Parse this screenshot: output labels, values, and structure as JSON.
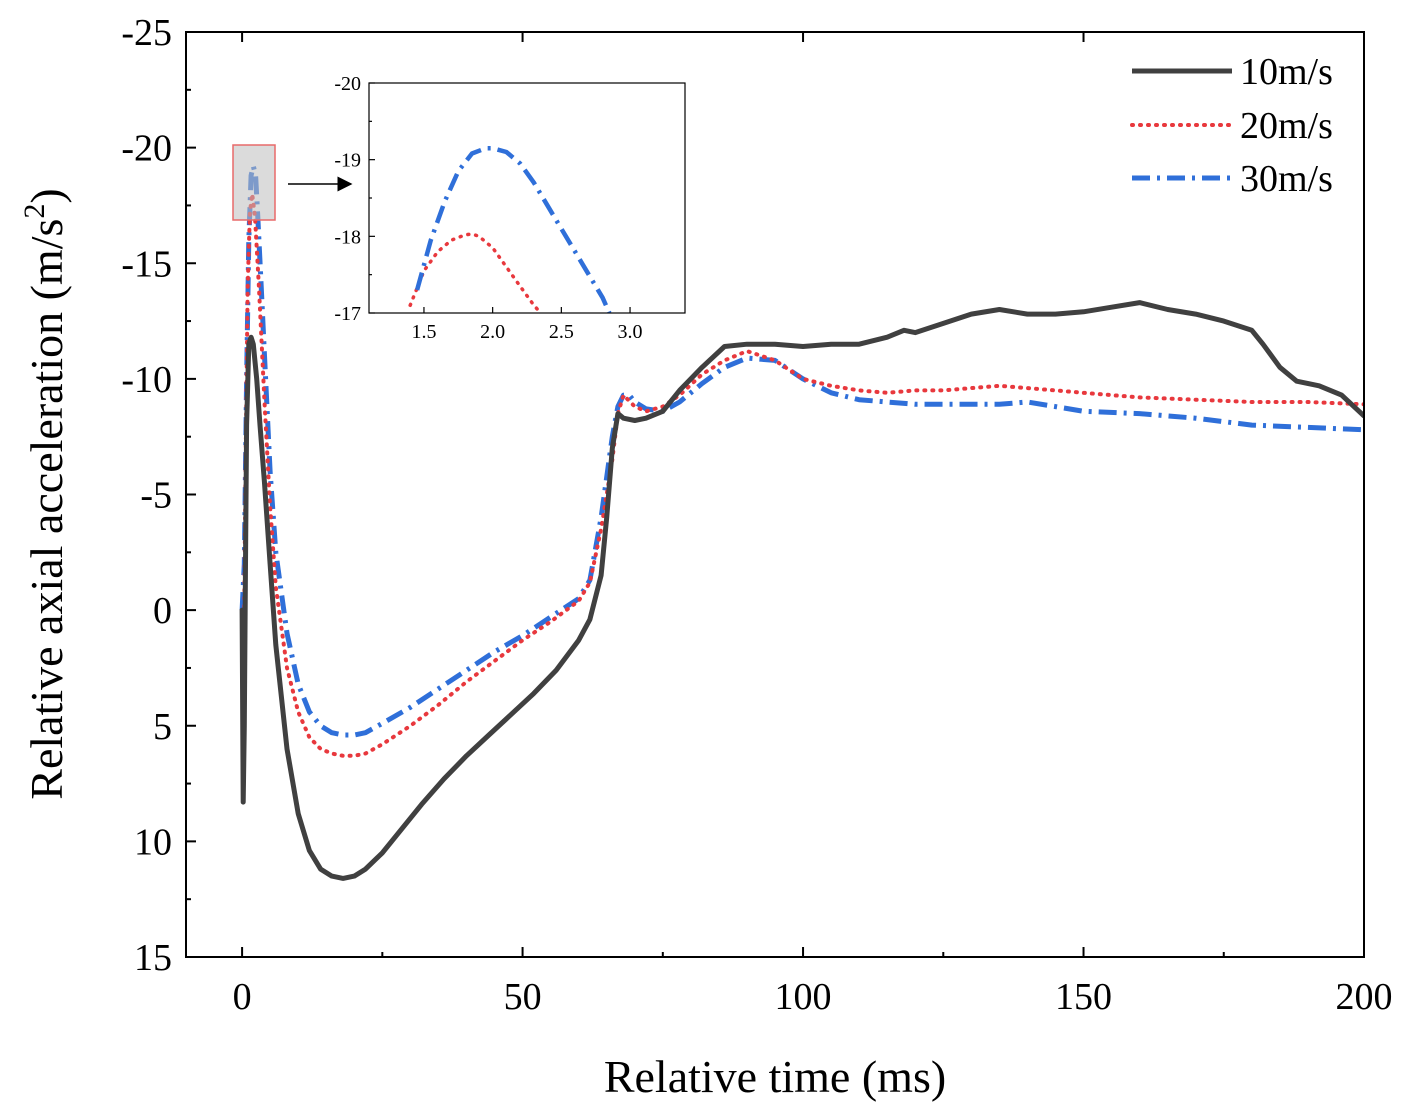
{
  "chart_data": {
    "type": "line",
    "title": "",
    "xlabel": "Relative time (ms)",
    "ylabel": "Relative axial acceleration (m/s",
    "ylabel_sup": "2",
    "ylabel_close": ")",
    "xlim": [
      -10,
      200
    ],
    "ylim": [
      15,
      -25
    ],
    "xticks": [
      0,
      50,
      100,
      150,
      200
    ],
    "xtick_labels": [
      "0",
      "50",
      "100",
      "150",
      "200"
    ],
    "yticks": [
      -25,
      -20,
      -15,
      -10,
      -5,
      0,
      5,
      10,
      15
    ],
    "ytick_labels": [
      "-25",
      "-20",
      "-15",
      "-10",
      "-5",
      "0",
      "5",
      "10",
      "15"
    ],
    "legend_position": "top-right",
    "series": [
      {
        "name": "10m/s",
        "color": "#404040",
        "style": "solid",
        "x": [
          0,
          0.2,
          0.4,
          0.6,
          0.8,
          1.2,
          1.6,
          2.0,
          2.6,
          3.2,
          4,
          5,
          6,
          8,
          10,
          12,
          14,
          16,
          18,
          20,
          22,
          25,
          28,
          32,
          36,
          40,
          44,
          48,
          52,
          56,
          60,
          62,
          64,
          65,
          66,
          67,
          68,
          70,
          72,
          75,
          78,
          82,
          86,
          90,
          95,
          100,
          105,
          110,
          115,
          118,
          120,
          125,
          130,
          135,
          140,
          145,
          150,
          155,
          160,
          165,
          170,
          175,
          180,
          182,
          185,
          188,
          192,
          196,
          200
        ],
        "values": [
          0,
          8.3,
          5,
          -2,
          -8,
          -11.5,
          -11.8,
          -11.5,
          -10,
          -8,
          -5.5,
          -2,
          1.5,
          6,
          8.8,
          10.4,
          11.2,
          11.5,
          11.6,
          11.5,
          11.2,
          10.5,
          9.6,
          8.4,
          7.3,
          6.3,
          5.4,
          4.5,
          3.6,
          2.6,
          1.3,
          0.4,
          -1.5,
          -4,
          -7,
          -8.5,
          -8.3,
          -8.2,
          -8.3,
          -8.6,
          -9.5,
          -10.5,
          -11.4,
          -11.5,
          -11.5,
          -11.4,
          -11.5,
          -11.5,
          -11.8,
          -12.1,
          -12.0,
          -12.4,
          -12.8,
          -13.0,
          -12.8,
          -12.8,
          -12.9,
          -13.1,
          -13.3,
          -13.0,
          -12.8,
          -12.5,
          -12.1,
          -11.5,
          -10.5,
          -9.9,
          -9.7,
          -9.3,
          -8.4
        ]
      },
      {
        "name": "20m/s",
        "color": "#e8383d",
        "style": "dotted",
        "x": [
          0,
          0.3,
          0.6,
          1.0,
          1.4,
          1.8,
          2.3,
          3.0,
          4,
          5,
          6,
          8,
          10,
          12,
          14,
          16,
          18,
          20,
          22,
          25,
          30,
          35,
          40,
          45,
          50,
          55,
          60,
          62,
          64,
          66,
          67,
          68,
          70,
          72,
          75,
          78,
          82,
          86,
          90,
          95,
          100,
          105,
          110,
          115,
          120,
          125,
          130,
          135,
          140,
          145,
          150,
          160,
          170,
          180,
          190,
          200
        ],
        "values": [
          0,
          2,
          -6,
          -14,
          -17.2,
          -18.0,
          -17,
          -14,
          -9,
          -4.5,
          -1,
          2.5,
          4.4,
          5.5,
          6.0,
          6.2,
          6.3,
          6.3,
          6.2,
          5.8,
          5.0,
          4.1,
          3.1,
          2.2,
          1.3,
          0.5,
          -0.4,
          -1.2,
          -3.5,
          -6.5,
          -8.5,
          -9.3,
          -8.8,
          -8.6,
          -8.8,
          -9.3,
          -10.2,
          -10.8,
          -11.2,
          -10.8,
          -10.0,
          -9.7,
          -9.5,
          -9.4,
          -9.5,
          -9.5,
          -9.6,
          -9.7,
          -9.6,
          -9.5,
          -9.4,
          -9.2,
          -9.1,
          -9.0,
          -9.0,
          -8.9
        ]
      },
      {
        "name": "30m/s",
        "color": "#2f6fd9",
        "style": "dashdot",
        "x": [
          0,
          0.4,
          0.8,
          1.2,
          1.6,
          2.0,
          2.4,
          2.8,
          3.4,
          4,
          5,
          6,
          8,
          10,
          12,
          14,
          16,
          18,
          20,
          22,
          25,
          30,
          35,
          40,
          45,
          50,
          55,
          60,
          62,
          64,
          66,
          67,
          68,
          69,
          70,
          72,
          75,
          78,
          82,
          86,
          90,
          95,
          100,
          105,
          110,
          115,
          120,
          125,
          130,
          135,
          140,
          145,
          150,
          160,
          170,
          180,
          190,
          200
        ],
        "values": [
          0,
          -2,
          -10,
          -16,
          -18.8,
          -19.2,
          -18.8,
          -17.0,
          -14,
          -11,
          -6,
          -2.5,
          1.0,
          3.2,
          4.4,
          5.0,
          5.3,
          5.4,
          5.4,
          5.3,
          4.9,
          4.2,
          3.4,
          2.6,
          1.8,
          1.1,
          0.3,
          -0.5,
          -1.3,
          -4.0,
          -7.5,
          -8.8,
          -9.3,
          -9.3,
          -9.0,
          -8.7,
          -8.6,
          -9.0,
          -9.8,
          -10.5,
          -10.9,
          -10.8,
          -10.0,
          -9.4,
          -9.1,
          -9.0,
          -8.9,
          -8.9,
          -8.9,
          -8.9,
          -9.0,
          -8.8,
          -8.6,
          -8.5,
          -8.3,
          -8.0,
          -7.9,
          -7.8
        ]
      }
    ],
    "inset": {
      "xlim": [
        1.1,
        3.4
      ],
      "ylim": [
        -17,
        -20
      ],
      "xticks": [
        1.5,
        2.0,
        2.5,
        3.0
      ],
      "xtick_labels": [
        "1.5",
        "2.0",
        "2.5",
        "3.0"
      ],
      "yticks": [
        -20,
        -19,
        -18,
        -17
      ],
      "ytick_labels": [
        "-20",
        "-19",
        "-18",
        "-17"
      ],
      "series": [
        {
          "name": "20m/s",
          "x": [
            1.4,
            1.5,
            1.6,
            1.7,
            1.8,
            1.85,
            1.9,
            2.0,
            2.1,
            2.2,
            2.3,
            2.35
          ],
          "values": [
            -17.1,
            -17.55,
            -17.8,
            -17.95,
            -18.02,
            -18.03,
            -18.0,
            -17.85,
            -17.6,
            -17.35,
            -17.1,
            -17.0
          ]
        },
        {
          "name": "30m/s",
          "x": [
            1.45,
            1.55,
            1.65,
            1.75,
            1.85,
            1.95,
            2.0,
            2.1,
            2.2,
            2.3,
            2.4,
            2.5,
            2.6,
            2.7,
            2.8,
            2.85
          ],
          "values": [
            -17.3,
            -17.95,
            -18.45,
            -18.85,
            -19.08,
            -19.15,
            -19.15,
            -19.1,
            -18.95,
            -18.7,
            -18.4,
            -18.1,
            -17.8,
            -17.5,
            -17.2,
            -17.0
          ]
        }
      ]
    }
  }
}
